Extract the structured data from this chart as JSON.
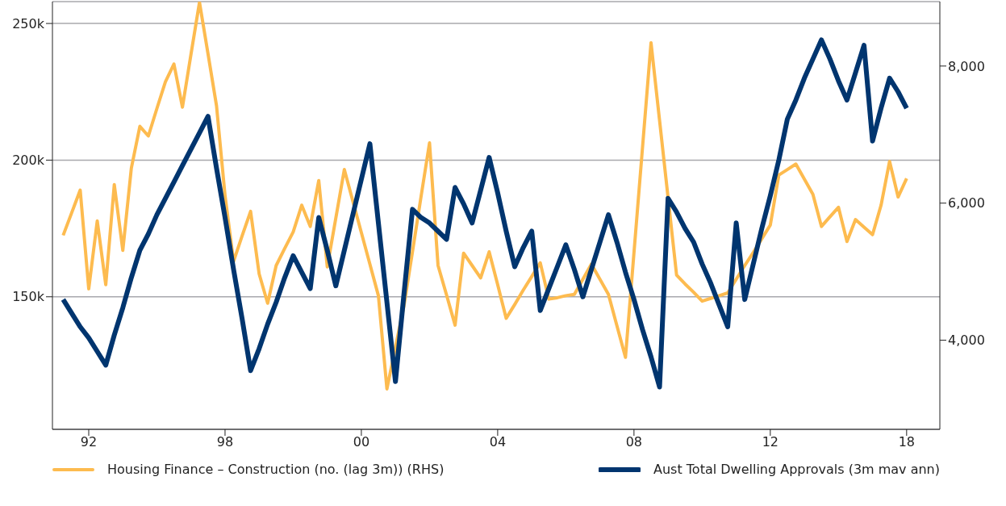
{
  "chart_data": {
    "type": "line",
    "categories": [
      null,
      null,
      null,
      "92",
      null,
      null,
      null,
      null,
      null,
      null,
      null,
      null,
      null,
      null,
      null,
      null,
      null,
      null,
      null,
      "98",
      null,
      null,
      null,
      null,
      null,
      null,
      null,
      null,
      null,
      null,
      null,
      null,
      null,
      null,
      null,
      "00",
      null,
      null,
      null,
      null,
      null,
      null,
      null,
      null,
      null,
      null,
      null,
      null,
      null,
      null,
      null,
      "04",
      null,
      null,
      null,
      null,
      null,
      null,
      null,
      null,
      null,
      null,
      null,
      null,
      null,
      null,
      null,
      "08",
      null,
      null,
      null,
      null,
      null,
      null,
      null,
      null,
      null,
      null,
      null,
      null,
      null,
      null,
      null,
      "12",
      null,
      null,
      null,
      null,
      null,
      null,
      null,
      null,
      null,
      null,
      null,
      null,
      null,
      null,
      null,
      "18"
    ],
    "ylim": [
      101500,
      258000
    ],
    "yticks": [
      {
        "value": 150000,
        "label": "150k"
      },
      {
        "value": 200000,
        "label": "200k"
      },
      {
        "value": 250000,
        "label": "250k"
      }
    ],
    "y2lim": [
      2700,
      8940
    ],
    "y2ticks": [
      {
        "value": 4000,
        "label": "4,000"
      },
      {
        "value": 6000,
        "label": "6,000"
      },
      {
        "value": 8000,
        "label": "8,000"
      }
    ],
    "grid": "y",
    "legend": "bottom",
    "marker": "none",
    "line_style": "solid",
    "series": [
      {
        "name": "Housing Finance – Construction (no. (lag 3m)) (RHS)",
        "color": "#fdbb4f",
        "axis": "y2",
        "values": [
          5530,
          5860,
          6190,
          4750,
          5740,
          4810,
          6270,
          5310,
          6510,
          7120,
          6980,
          7380,
          7770,
          8030,
          7400,
          8170,
          8930,
          8180,
          7420,
          6110,
          5150,
          5520,
          5880,
          4970,
          4540,
          5090,
          5340,
          5580,
          5970,
          5660,
          6330,
          5070,
          5780,
          6490,
          6030,
          5570,
          5110,
          4650,
          3290,
          3900,
          4500,
          5290,
          6090,
          6880,
          5090,
          4660,
          4220,
          5270,
          5090,
          4910,
          5290,
          4810,
          4320,
          4520,
          4730,
          4930,
          5130,
          4600,
          4620,
          4650,
          4670,
          4890,
          5110,
          4890,
          4670,
          4210,
          3750,
          5280,
          6810,
          8340,
          7210,
          6080,
          4950,
          4820,
          4700,
          4570,
          4610,
          4650,
          4690,
          4890,
          5090,
          5280,
          5480,
          5680,
          6410,
          6490,
          6570,
          6350,
          6130,
          5660,
          5800,
          5940,
          5440,
          5760,
          5650,
          5540,
          5970,
          6610,
          6090,
          6360
        ]
      },
      {
        "name": "Aust Total Dwelling Approvals (3m mav ann)",
        "color": "#00356f",
        "values": [
          149000,
          144000,
          139000,
          135000,
          130000,
          125000,
          136000,
          146000,
          157000,
          167000,
          173000,
          180000,
          186000,
          192000,
          198000,
          204000,
          210000,
          216000,
          197000,
          179000,
          160000,
          142000,
          123000,
          131000,
          140000,
          148000,
          157000,
          165000,
          159000,
          153000,
          179000,
          167000,
          154000,
          167000,
          180000,
          193000,
          206000,
          177000,
          148000,
          119000,
          151000,
          182000,
          179000,
          177000,
          174000,
          171000,
          190000,
          184000,
          177000,
          189000,
          201000,
          188000,
          174000,
          161000,
          168000,
          174000,
          145000,
          153000,
          161000,
          169000,
          160000,
          150000,
          160000,
          170000,
          180000,
          170000,
          159000,
          149000,
          138000,
          128000,
          117000,
          186000,
          181000,
          175000,
          170000,
          162000,
          155000,
          147000,
          139000,
          177000,
          149000,
          162000,
          175000,
          187000,
          200000,
          215000,
          222000,
          230000,
          237000,
          244000,
          237000,
          229000,
          222000,
          232000,
          242000,
          207000,
          219000,
          230000,
          225000,
          219000
        ]
      }
    ]
  }
}
